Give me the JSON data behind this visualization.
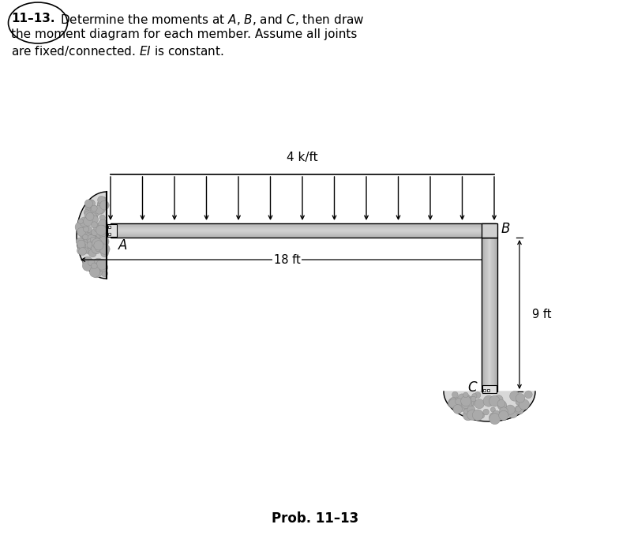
{
  "title_number": "11–13.",
  "title_line1": "Determine the moments at $A$, $B$, and $C$, then draw",
  "title_line2": "the moment diagram for each member. Assume all joints",
  "title_line3": "are fixed/connected. $EI$ is constant.",
  "prob_label": "Prob. 11–13",
  "load_label": "4 k/ft",
  "dim_horiz": "18 ft",
  "dim_vert": "9 ft",
  "label_A": "$A$",
  "label_B": "$B$",
  "label_C": "$C$",
  "fig_width": 7.98,
  "fig_height": 6.88
}
